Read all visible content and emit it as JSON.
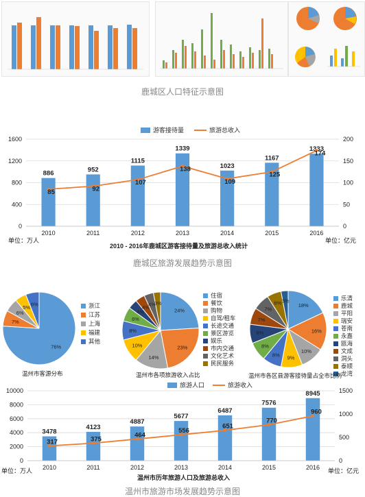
{
  "captions": {
    "population": "鹿城区人口特征示意图",
    "tourism_lucheng": "鹿城区旅游发展趋势示意图",
    "tourism_wenzhou": "温州市旅游市场发展趋势示意图"
  },
  "colors": {
    "bar": "#5b9bd5",
    "line": "#ed7d31"
  },
  "chart_data": [
    {
      "id": "lucheng",
      "type": "bar",
      "title": "2010 - 2016年鹿城区游客接待量及旅游总收入统计",
      "categories": [
        "2010",
        "2011",
        "2012",
        "2013",
        "2014",
        "2015",
        "2016"
      ],
      "series": [
        {
          "name": "游客接待量",
          "type": "bar",
          "axis": "left",
          "values": [
            886,
            952,
            1115,
            1339,
            1023,
            1167,
            1333
          ]
        },
        {
          "name": "旅游总收入",
          "type": "line",
          "axis": "right",
          "values": [
            85,
            92,
            107,
            138,
            109,
            125,
            174
          ]
        }
      ],
      "y_left": {
        "min": 0,
        "max": 1600,
        "ticks": [
          0,
          400,
          800,
          1200,
          1600
        ],
        "unit": "单位：万人"
      },
      "y_right": {
        "min": 0,
        "max": 200,
        "ticks": [
          0,
          50,
          100,
          150,
          200
        ],
        "unit": "单位：亿元"
      },
      "legend_position": "top-center",
      "grid": true
    },
    {
      "id": "wenzhou",
      "type": "bar",
      "title": "温州市历年旅游人口及旅游总收入",
      "categories": [
        "2010",
        "2011",
        "2012",
        "2013",
        "2014",
        "2015",
        "2016"
      ],
      "series": [
        {
          "name": "旅游人口",
          "type": "bar",
          "axis": "left",
          "values": [
            3478,
            4123,
            4887,
            5677,
            6487,
            7576,
            8945
          ]
        },
        {
          "name": "旅游收入",
          "type": "line",
          "axis": "right",
          "values": [
            317,
            375,
            464,
            556,
            651,
            770,
            960
          ]
        }
      ],
      "y_left": {
        "min": 0,
        "max": 10000,
        "ticks": [
          0,
          2000,
          4000,
          6000,
          8000,
          10000
        ],
        "unit": "单位：万人"
      },
      "y_right": {
        "min": 0,
        "max": 1500,
        "ticks": [
          0,
          500,
          1000,
          1500
        ],
        "unit": "单位：亿元"
      },
      "legend_position": "top-center",
      "grid": true
    },
    {
      "id": "source_pie",
      "type": "pie",
      "title": "温州市客源分布",
      "labels": [
        "浙江",
        "江苏",
        "上海",
        "福建",
        "其他"
      ],
      "values": [
        76,
        7,
        6,
        5,
        6
      ],
      "colors": [
        "#5b9bd5",
        "#ed7d31",
        "#a5a5a5",
        "#ffc000",
        "#4472c4"
      ]
    },
    {
      "id": "income_pie",
      "type": "pie",
      "title": "温州市各项旅游收入占比",
      "labels": [
        "住宿",
        "餐饮",
        "购物",
        "自驾/租车",
        "长途交通",
        "景区游览",
        "娱乐",
        "市内交通",
        "文化艺术",
        "民民服务"
      ],
      "values": [
        24,
        23,
        14,
        10,
        8,
        6,
        4,
        4,
        4,
        3
      ],
      "colors": [
        "#5b9bd5",
        "#ed7d31",
        "#a5a5a5",
        "#ffc000",
        "#4472c4",
        "#70ad47",
        "#264478",
        "#9e480e",
        "#636363",
        "#997300"
      ]
    },
    {
      "id": "county_pie",
      "type": "pie",
      "title": "温州市各区县游客接待量占全市比例",
      "labels": [
        "乐清",
        "鹿城",
        "平阳",
        "瑞安",
        "苍南",
        "永嘉",
        "瓯海",
        "文成",
        "洞头",
        "泰顺",
        "龙湾"
      ],
      "values": [
        18,
        16,
        10,
        9,
        8,
        8,
        8,
        7,
        7,
        6,
        3
      ],
      "colors": [
        "#5b9bd5",
        "#ed7d31",
        "#a5a5a5",
        "#ffc000",
        "#4472c4",
        "#70ad47",
        "#264478",
        "#9e480e",
        "#636363",
        "#997300",
        "#255e91"
      ]
    }
  ]
}
